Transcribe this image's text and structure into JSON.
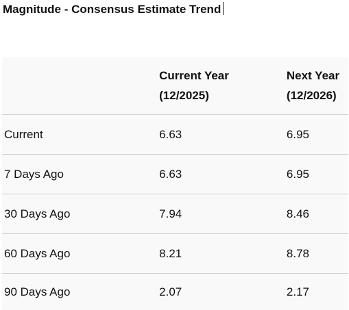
{
  "header": {
    "title": "Magnitude - Consensus Estimate Trend"
  },
  "table": {
    "columns": [
      "",
      "Current Year (12/2025)",
      "Next Year (12/2026)"
    ],
    "rows": [
      [
        "Current",
        6.63,
        6.95
      ],
      [
        "7 Days Ago",
        6.63,
        6.95
      ],
      [
        "30 Days Ago",
        7.94,
        8.46
      ],
      [
        "60 Days Ago",
        8.21,
        8.78
      ],
      [
        "90 Days Ago",
        2.07,
        2.17
      ]
    ]
  }
}
